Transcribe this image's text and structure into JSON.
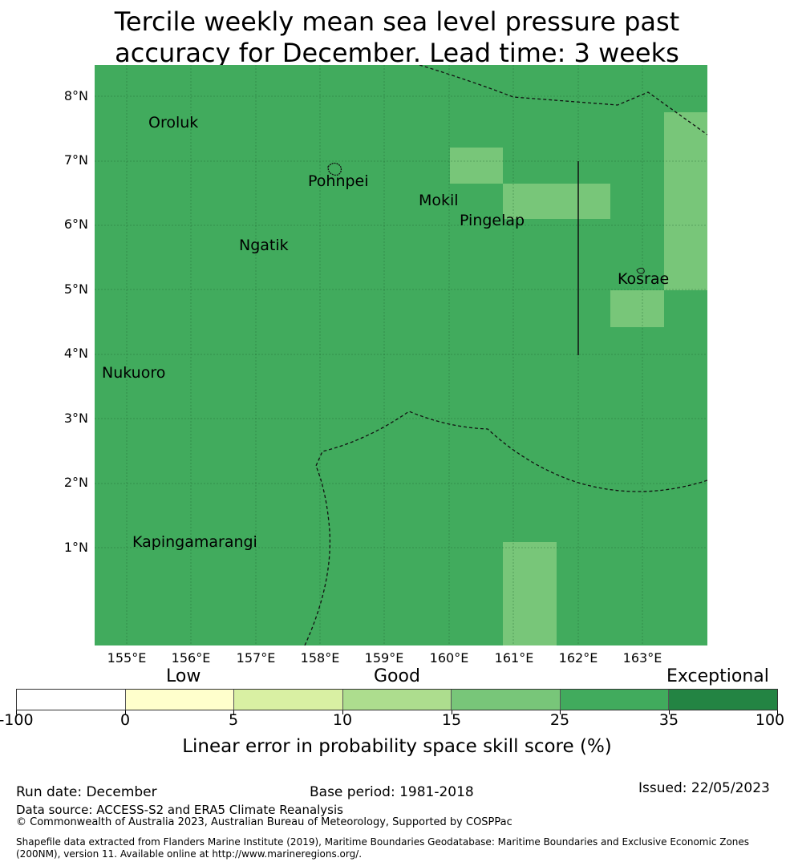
{
  "title": {
    "line1": "Tercile weekly mean sea level pressure past",
    "line2": "accuracy for December. Lead time: 3 weeks"
  },
  "map": {
    "background_color": "#41ab5d",
    "highlight_color": "#78c679",
    "lat_labels": [
      "8°N",
      "7°N",
      "6°N",
      "5°N",
      "4°N",
      "3°N",
      "2°N",
      "1°N"
    ],
    "lon_labels": [
      "155°E",
      "156°E",
      "157°E",
      "158°E",
      "159°E",
      "160°E",
      "161°E",
      "162°E",
      "163°E"
    ],
    "places": [
      "Oroluk",
      "Pohnpei",
      "Mokil",
      "Pingelap",
      "Ngatik",
      "Kosrae",
      "Nukuoro",
      "Kapingamarangi"
    ]
  },
  "legend": {
    "categories": [
      "Low",
      "Good",
      "Exceptional"
    ],
    "colors": [
      "#ffffff",
      "#ffffcc",
      "#d9f0a3",
      "#addd8e",
      "#78c679",
      "#41ab5d",
      "#238443"
    ],
    "ticks": [
      "-100",
      "0",
      "5",
      "10",
      "15",
      "25",
      "35",
      "100"
    ],
    "label": "Linear error in probability space skill score (%)"
  },
  "footer": {
    "run_date": "Run date: December",
    "base_period": "Base period: 1981-2018",
    "issued": "Issued: 22/05/2023",
    "data_source": "Data source: ACCESS-S2 and ERA5 Climate Reanalysis",
    "copyright": "© Commonwealth of Australia 2023, Australian Bureau of Meteorology, Supported by COSPPac",
    "shapefile_line1": "Shapefile data extracted from Flanders Marine Institute (2019), Maritime Boundaries Geodatabase: Maritime Boundaries and Exclusive Economic Zones",
    "shapefile_line2": "(200NM), version 11. Available online at http://www.marineregions.org/."
  }
}
